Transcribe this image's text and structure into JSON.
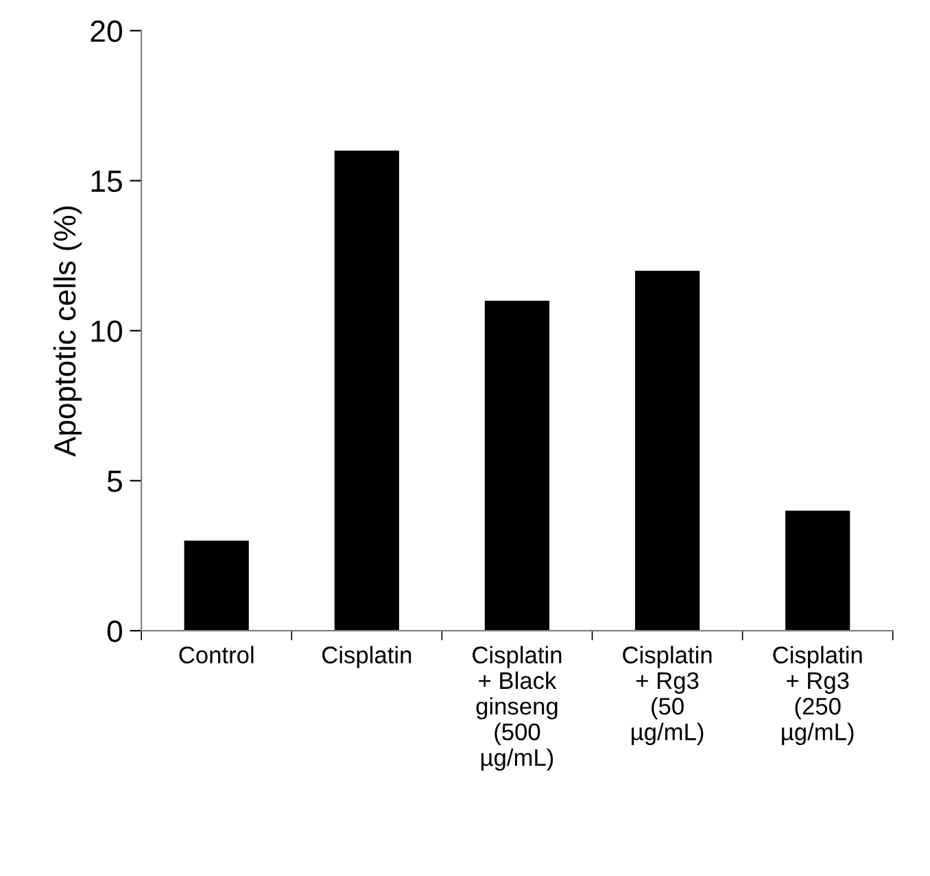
{
  "chart_data": {
    "type": "bar",
    "ylabel": "Apoptotic cells (%)",
    "categories": [
      "Control",
      "Cisplatin",
      "Cisplatin\n+ Black\nginseng\n(500\nµg/mL)",
      "Cisplatin\n+ Rg3\n(50\nµg/mL)",
      "Cisplatin\n+ Rg3\n(250\nµg/mL)"
    ],
    "values": [
      3,
      16,
      11,
      12,
      4
    ],
    "color": "#000000",
    "ylim": [
      0,
      20
    ],
    "yticks": [
      0,
      5,
      10,
      15,
      20
    ],
    "grid": false,
    "legend": false
  }
}
